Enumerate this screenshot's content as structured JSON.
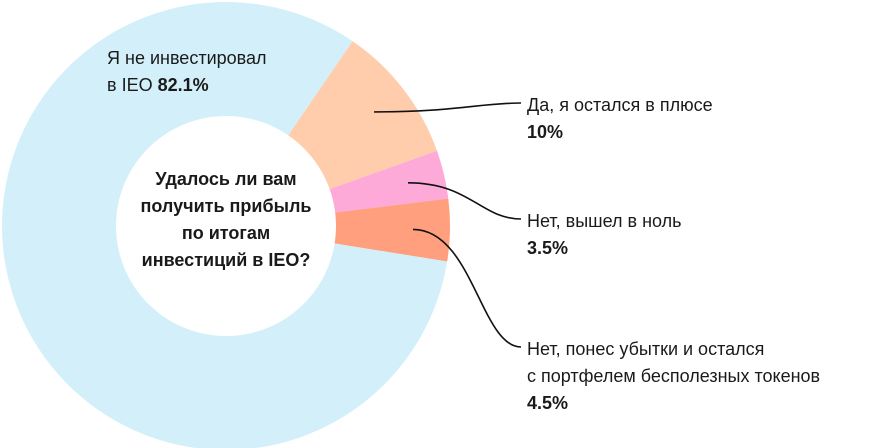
{
  "chart_data": {
    "type": "pie",
    "title": "Удалось ли вам получить прибыль по итогам инвестиций в IEO?",
    "slices": [
      {
        "label_line1": "Я не инвестировал",
        "label_line2": "в IEO",
        "value": 82.1,
        "value_text": "82.1%",
        "color": "#d3f0fa"
      },
      {
        "label_line1": "Да, я остался в плюсе",
        "value": 10,
        "value_text": "10%",
        "color": "#ffcdab"
      },
      {
        "label_line1": "Нет, вышел в ноль",
        "value": 3.5,
        "value_text": "3.5%",
        "color": "#fdaad8"
      },
      {
        "label_line1": "Нет, понес убытки и остался",
        "label_line2": "с портфелем бесполезных токенов",
        "value": 4.5,
        "value_text": "4.5%",
        "color": "#ff9f7e"
      }
    ]
  },
  "center_title": {
    "line1": "Удалось ли вам",
    "line2": "получить прибыль",
    "line3": "по итогам",
    "line4": "инвестиций в IEO?"
  }
}
